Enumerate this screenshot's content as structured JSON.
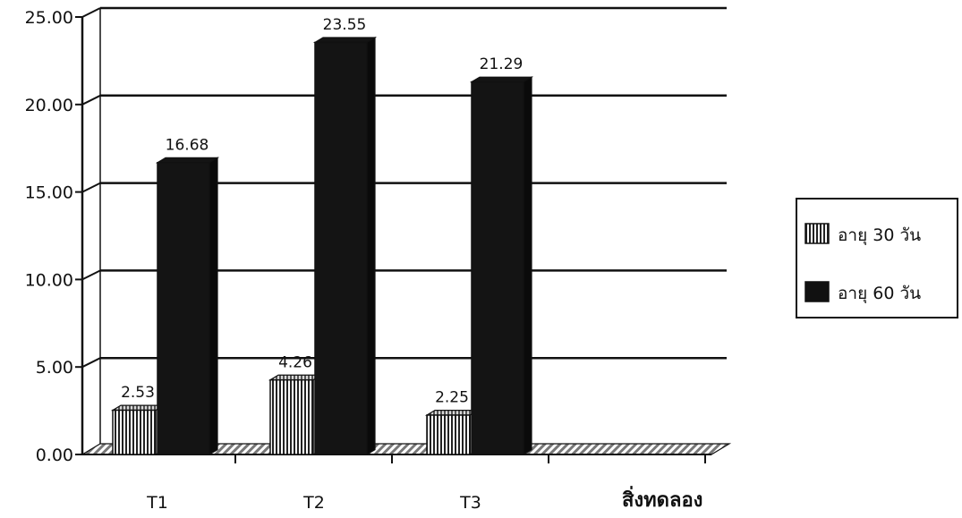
{
  "chart_data": {
    "type": "bar",
    "categories": [
      "T1",
      "T2",
      "T3"
    ],
    "series": [
      {
        "name": "อายุ 30 วัน",
        "values": [
          2.53,
          4.26,
          2.25
        ],
        "pattern": "vertical-stripes"
      },
      {
        "name": "อายุ 60 วัน",
        "values": [
          16.68,
          23.55,
          21.29
        ],
        "color": "#111111"
      }
    ],
    "data_labels": [
      [
        "2.53",
        "4.26",
        "2.25"
      ],
      [
        "16.68",
        "23.55",
        "21.29"
      ]
    ],
    "y_ticks": [
      "0.00",
      "5.00",
      "10.00",
      "15.00",
      "20.00",
      "25.00"
    ],
    "ylim": [
      0,
      25
    ],
    "title": "",
    "ylabel": "",
    "xlabel": "สิ่งทดลอง",
    "grid": true,
    "legend_position": "right",
    "style": "3d"
  }
}
